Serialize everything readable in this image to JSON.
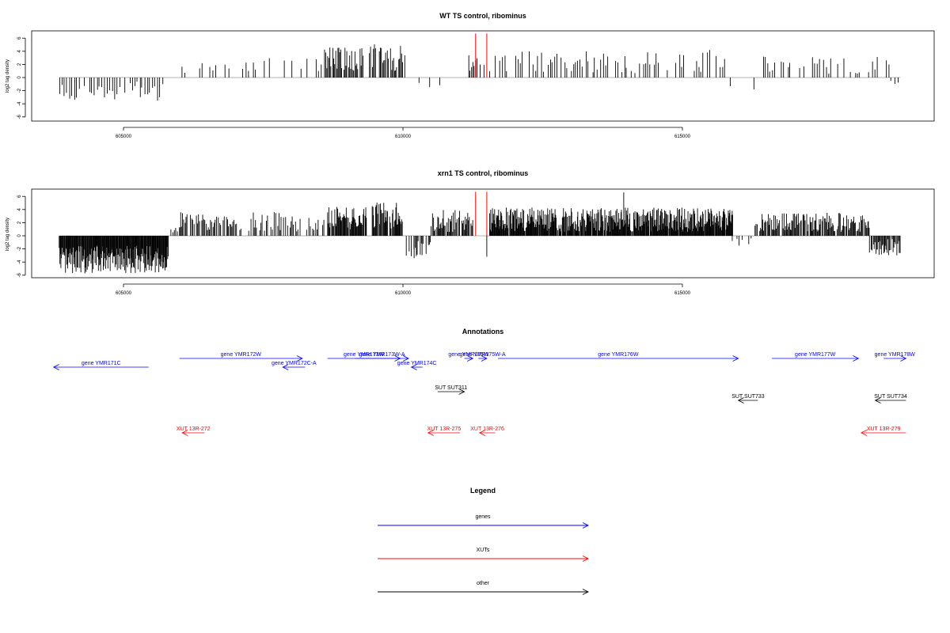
{
  "colors": {
    "gene": "#0000ff",
    "xut": "#ff0000",
    "other": "#000000",
    "marker": "#ff0000",
    "bars": "#000000",
    "baseline": "#999999"
  },
  "chart_data": [
    {
      "type": "bar",
      "title": "WT TS control, ribominus",
      "ylabel": "log2 tag density",
      "xlim": [
        603200,
        619000
      ],
      "ylim": [
        -6,
        7
      ],
      "xticks": [
        605000,
        610000,
        615000
      ],
      "xtick_labels": [
        "605000",
        "610000",
        "615000"
      ],
      "yticks": [
        -6,
        -4,
        -2,
        0,
        2,
        4,
        6
      ],
      "ytick_labels": [
        "-6",
        "-4",
        "-2",
        "0",
        "2",
        "4",
        "6"
      ],
      "markers": [
        611300,
        611500
      ],
      "segments": [
        {
          "from": 603850,
          "to": 605700,
          "step": 45,
          "min": -3.6,
          "max": -0.6,
          "fill": 0.85
        },
        {
          "from": 606050,
          "to": 607400,
          "step": 60,
          "min": 0.5,
          "max": 2.4,
          "fill": 0.45
        },
        {
          "from": 607450,
          "to": 608550,
          "step": 55,
          "min": 0.8,
          "max": 3.2,
          "fill": 0.5
        },
        {
          "from": 608600,
          "to": 609300,
          "step": 18,
          "min": 1.0,
          "max": 4.6,
          "fill": 0.85
        },
        {
          "from": 609400,
          "to": 610050,
          "step": 18,
          "min": 1.0,
          "max": 5.2,
          "fill": 0.8
        },
        {
          "from": 610100,
          "to": 610900,
          "step": 90,
          "min": -2.6,
          "max": -0.6,
          "fill": 0.4
        },
        {
          "from": 611150,
          "to": 611850,
          "step": 25,
          "min": 0.6,
          "max": 3.4,
          "fill": 0.55
        },
        {
          "from": 611950,
          "to": 615850,
          "step": 38,
          "min": 0.6,
          "max": 4.2,
          "fill": 0.6
        },
        {
          "from": 615850,
          "to": 616450,
          "step": 90,
          "min": -2.5,
          "max": -0.6,
          "fill": 0.4
        },
        {
          "from": 616450,
          "to": 618700,
          "step": 40,
          "min": 0.6,
          "max": 3.3,
          "fill": 0.55
        },
        {
          "from": 618730,
          "to": 618900,
          "step": 60,
          "min": -1.2,
          "max": -0.4,
          "fill": 1.0
        }
      ]
    },
    {
      "type": "bar",
      "title": "xrn1 TS control, ribominus",
      "ylabel": "log2 tag density",
      "xlim": [
        603200,
        619000
      ],
      "ylim": [
        -6,
        7
      ],
      "xticks": [
        605000,
        610000,
        615000
      ],
      "xtick_labels": [
        "605000",
        "610000",
        "615000"
      ],
      "yticks": [
        -6,
        -4,
        -2,
        0,
        2,
        4,
        6
      ],
      "ytick_labels": [
        "-6",
        "-4",
        "-2",
        "0",
        "2",
        "4",
        "6"
      ],
      "markers": [
        611300,
        611500
      ],
      "segments": [
        {
          "from": 603850,
          "to": 605800,
          "step": 10,
          "min": -5.8,
          "max": -1.5,
          "fill": 1.0
        },
        {
          "from": 605850,
          "to": 606000,
          "step": 30,
          "min": 0.4,
          "max": 1.5,
          "fill": 0.7
        },
        {
          "from": 606000,
          "to": 608600,
          "step": 20,
          "min": 0.6,
          "max": 3.6,
          "fill": 0.7
        },
        {
          "from": 608650,
          "to": 609350,
          "step": 12,
          "min": 1.0,
          "max": 4.6,
          "fill": 0.9
        },
        {
          "from": 609450,
          "to": 610000,
          "step": 12,
          "min": 1.0,
          "max": 5.2,
          "fill": 0.9
        },
        {
          "from": 610020,
          "to": 610500,
          "step": 18,
          "min": -3.2,
          "max": -0.8,
          "fill": 0.8
        },
        {
          "from": 610500,
          "to": 611250,
          "step": 15,
          "min": 0.6,
          "max": 4.0,
          "fill": 0.85
        },
        {
          "from": 611550,
          "to": 615900,
          "step": 10,
          "min": 0.6,
          "max": 4.3,
          "fill": 0.95
        },
        {
          "from": 615900,
          "to": 616300,
          "step": 40,
          "min": -1.6,
          "max": -0.4,
          "fill": 0.5
        },
        {
          "from": 616300,
          "to": 618350,
          "step": 14,
          "min": 0.6,
          "max": 3.5,
          "fill": 0.85
        },
        {
          "from": 618350,
          "to": 618900,
          "step": 14,
          "min": -3.0,
          "max": -0.5,
          "fill": 0.9
        }
      ],
      "spikes": [
        {
          "x": 613950,
          "y": 6.6
        },
        {
          "x": 611500,
          "y": -3.2
        },
        {
          "x": 610200,
          "y": -3.4
        }
      ]
    }
  ],
  "annotations": {
    "title": "Annotations",
    "items": [
      {
        "label": "gene YMR171C",
        "kind": "gene",
        "dir": "left",
        "start": 603750,
        "end": 605450,
        "row": 2
      },
      {
        "label": "gene YMR172W",
        "kind": "gene",
        "dir": "right",
        "start": 606000,
        "end": 608200,
        "row": 1
      },
      {
        "label": "gene YMR172C-A",
        "kind": "gene",
        "dir": "left",
        "start": 607850,
        "end": 608250,
        "row": 2
      },
      {
        "label": "gene YMR173W",
        "kind": "gene",
        "dir": "right",
        "start": 608650,
        "end": 609950,
        "row": 1
      },
      {
        "label": "gene YMR173W-A",
        "kind": "gene",
        "dir": "right",
        "start": 609150,
        "end": 610100,
        "row": 1
      },
      {
        "label": "gene YMR174C",
        "kind": "gene",
        "dir": "left",
        "start": 610150,
        "end": 610350,
        "row": 2
      },
      {
        "label": "gene YMR175W",
        "kind": "gene",
        "dir": "right",
        "start": 611100,
        "end": 611250,
        "row": 1
      },
      {
        "label": "gene YMR175W-A",
        "kind": "gene",
        "dir": "right",
        "start": 611350,
        "end": 611500,
        "row": 1
      },
      {
        "label": "gene YMR176W",
        "kind": "gene",
        "dir": "right",
        "start": 611700,
        "end": 616000,
        "row": 1
      },
      {
        "label": "gene YMR177W",
        "kind": "gene",
        "dir": "right",
        "start": 616600,
        "end": 618150,
        "row": 1
      },
      {
        "label": "gene YMR178W",
        "kind": "gene",
        "dir": "right",
        "start": 618600,
        "end": 619000,
        "row": 1
      },
      {
        "label": "SUT SUT311",
        "kind": "other",
        "dir": "right",
        "start": 610620,
        "end": 611100,
        "row": 3
      },
      {
        "label": "SUT SUT733",
        "kind": "other",
        "dir": "left",
        "start": 616000,
        "end": 616350,
        "row": 4
      },
      {
        "label": "SUT SUT734",
        "kind": "other",
        "dir": "left",
        "start": 618450,
        "end": 619000,
        "row": 4
      },
      {
        "label": "XUT 13R-272",
        "kind": "xut",
        "dir": "left",
        "start": 606050,
        "end": 606450,
        "row": 5
      },
      {
        "label": "XUT 13R-275",
        "kind": "xut",
        "dir": "left",
        "start": 610450,
        "end": 611020,
        "row": 5
      },
      {
        "label": "XUT 13R-276",
        "kind": "xut",
        "dir": "left",
        "start": 611370,
        "end": 611650,
        "row": 5
      },
      {
        "label": "XUT 13R-279",
        "kind": "xut",
        "dir": "left",
        "start": 618200,
        "end": 619000,
        "row": 5
      }
    ]
  },
  "legend": {
    "title": "Legend",
    "items": [
      {
        "label": "genes",
        "kind": "gene"
      },
      {
        "label": "XUTs",
        "kind": "xut"
      },
      {
        "label": "other",
        "kind": "other"
      }
    ]
  }
}
